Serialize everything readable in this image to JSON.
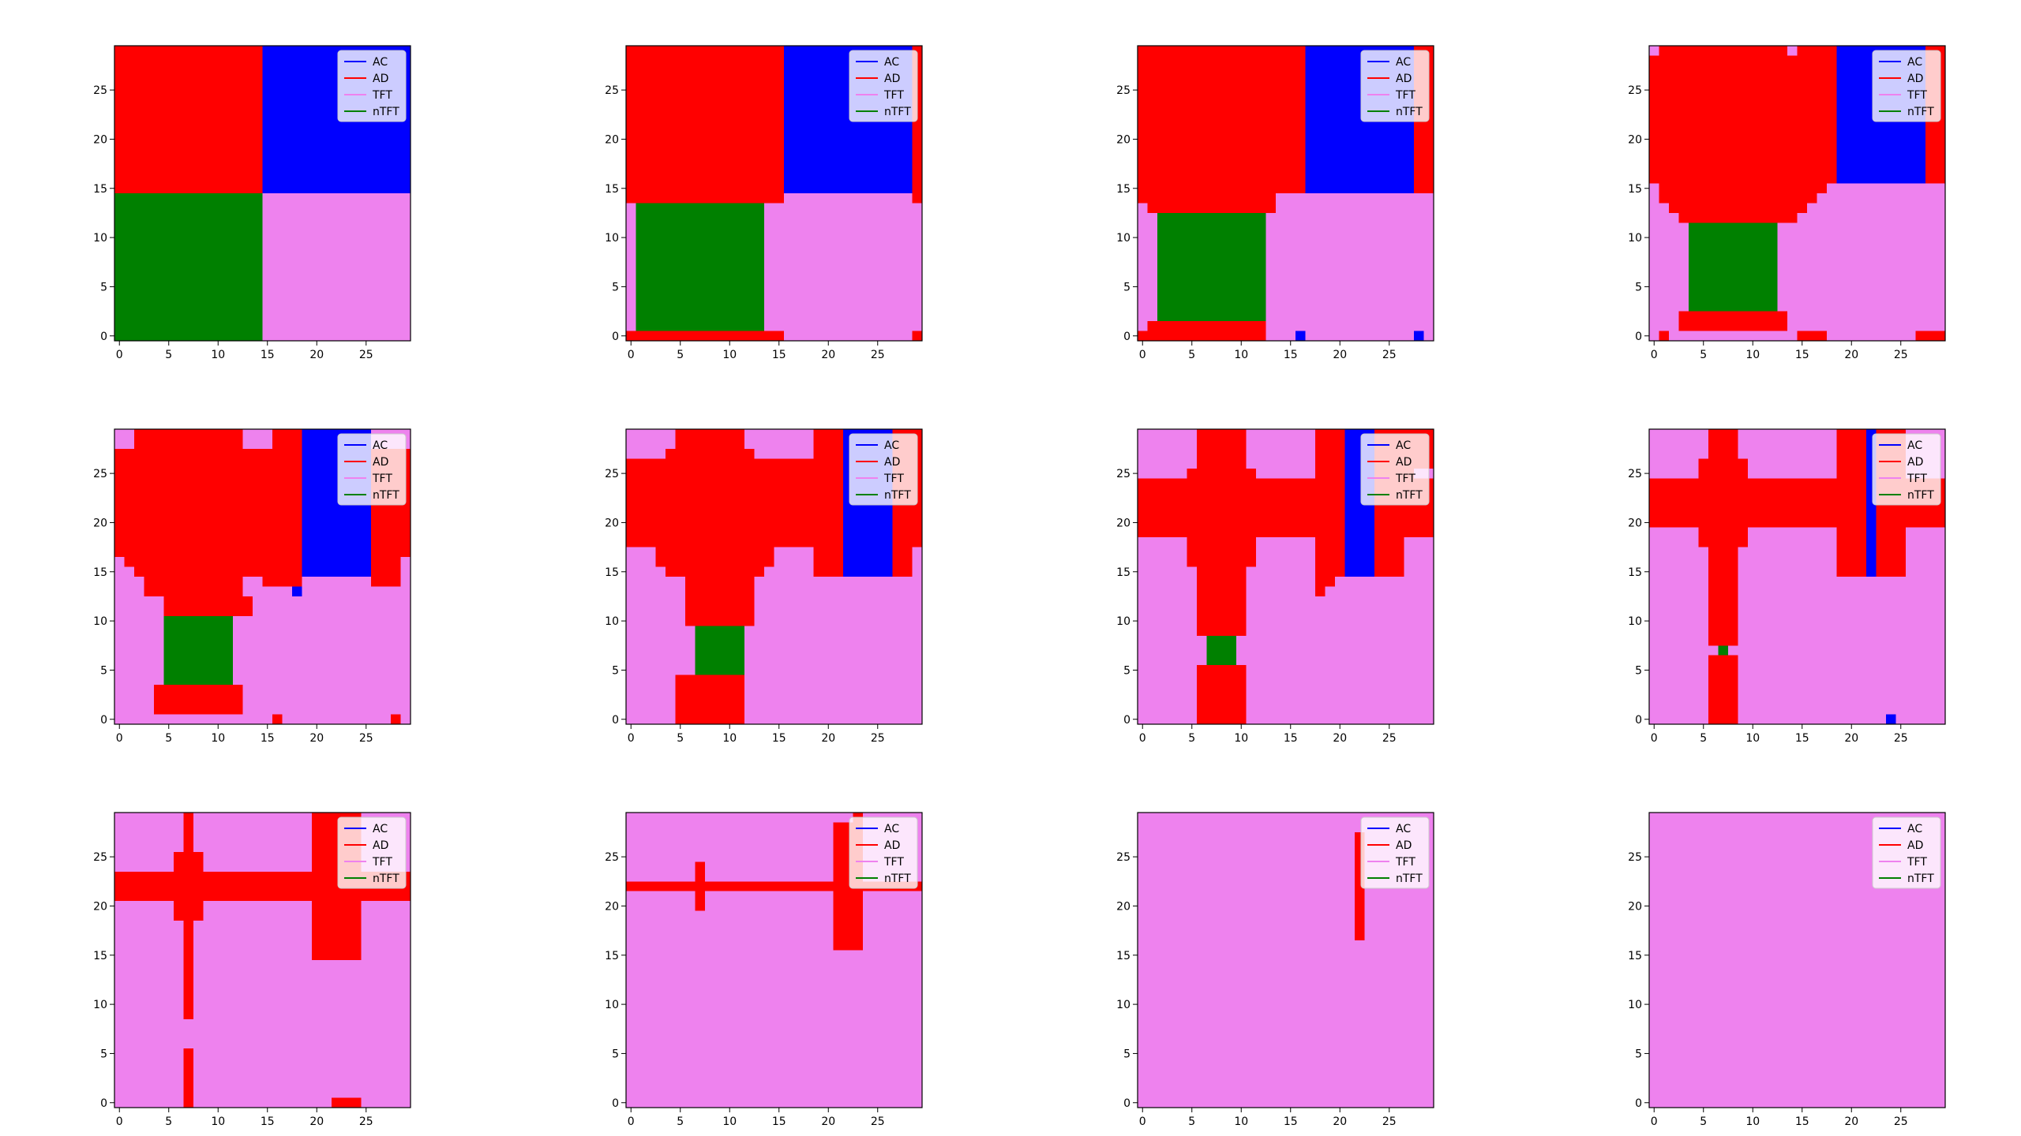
{
  "figure": {
    "layout": {
      "rows": 3,
      "cols": 4
    },
    "colors": {
      "AC": "#0000ff",
      "AD": "#ff0000",
      "TFT": "#ee82ee",
      "nTFT": "#008000"
    },
    "legend": [
      "AC",
      "AD",
      "TFT",
      "nTFT"
    ],
    "legend_placement": "upper right",
    "xlim": [
      -0.5,
      29.5
    ],
    "ylim": [
      -0.5,
      29.5
    ],
    "xticks": [
      0,
      5,
      10,
      15,
      20,
      25
    ],
    "yticks": [
      0,
      5,
      10,
      15,
      20,
      25
    ],
    "grid": false
  },
  "chart_data": [
    {
      "type": "heatmap",
      "grid_size": 30,
      "note": "categorical grid; rows listed from y=29 (top) to y=0 (bottom); C=AC, D=AD, T=TFT, N=nTFT",
      "rows": [
        "DDDDDDDDDDDDDDDCCCCCCCCCCCCCCC",
        "DDDDDDDDDDDDDDDCCCCCCCCCCCCCCC",
        "DDDDDDDDDDDDDDDCCCCCCCCCCCCCCC",
        "DDDDDDDDDDDDDDDCCCCCCCCCCCCCCC",
        "DDDDDDDDDDDDDDDCCCCCCCCCCCCCCC",
        "DDDDDDDDDDDDDDDCCCCCCCCCCCCCCC",
        "DDDDDDDDDDDDDDDCCCCCCCCCCCCCCC",
        "DDDDDDDDDDDDDDDCCCCCCCCCCCCCCC",
        "DDDDDDDDDDDDDDDCCCCCCCCCCCCCCC",
        "DDDDDDDDDDDDDDDCCCCCCCCCCCCCCC",
        "DDDDDDDDDDDDDDDCCCCCCCCCCCCCCC",
        "DDDDDDDDDDDDDDDCCCCCCCCCCCCCCC",
        "DDDDDDDDDDDDDDDCCCCCCCCCCCCCCC",
        "DDDDDDDDDDDDDDDCCCCCCCCCCCCCCC",
        "DDDDDDDDDDDDDDDCCCCCCCCCCCCCCC",
        "NNNNNNNNNNNNNNNTTTTTTTTTTTTTTT",
        "NNNNNNNNNNNNNNNTTTTTTTTTTTTTTT",
        "NNNNNNNNNNNNNNNTTTTTTTTTTTTTTT",
        "NNNNNNNNNNNNNNNTTTTTTTTTTTTTTT",
        "NNNNNNNNNNNNNNNTTTTTTTTTTTTTTT",
        "NNNNNNNNNNNNNNNTTTTTTTTTTTTTTT",
        "NNNNNNNNNNNNNNNTTTTTTTTTTTTTTT",
        "NNNNNNNNNNNNNNNTTTTTTTTTTTTTTT",
        "NNNNNNNNNNNNNNNTTTTTTTTTTTTTTT",
        "NNNNNNNNNNNNNNNTTTTTTTTTTTTTTT",
        "NNNNNNNNNNNNNNNTTTTTTTTTTTTTTT",
        "NNNNNNNNNNNNNNNTTTTTTTTTTTTTTT",
        "NNNNNNNNNNNNNNNTTTTTTTTTTTTTTT",
        "NNNNNNNNNNNNNNNTTTTTTTTTTTTTTT",
        "NNNNNNNNNNNNNNNTTTTTTTTTTTTTTT"
      ]
    },
    {
      "type": "heatmap",
      "grid_size": 30,
      "rows": [
        "DDDDDDDDDDDDDDDDCCCCCCCCCCCCCD",
        "DDDDDDDDDDDDDDDDCCCCCCCCCCCCCD",
        "DDDDDDDDDDDDDDDDCCCCCCCCCCCCCD",
        "DDDDDDDDDDDDDDDDCCCCCCCCCCCCCD",
        "DDDDDDDDDDDDDDDDCCCCCCCCCCCCCD",
        "DDDDDDDDDDDDDDDDCCCCCCCCCCCCCD",
        "DDDDDDDDDDDDDDDDCCCCCCCCCCCCCD",
        "DDDDDDDDDDDDDDDDCCCCCCCCCCCCCD",
        "DDDDDDDDDDDDDDDDCCCCCCCCCCCCCD",
        "DDDDDDDDDDDDDDDDCCCCCCCCCCCCCD",
        "DDDDDDDDDDDDDDDDCCCCCCCCCCCCCD",
        "DDDDDDDDDDDDDDDDCCCCCCCCCCCCCD",
        "DDDDDDDDDDDDDDDDCCCCCCCCCCCCCD",
        "DDDDDDDDDDDDDDDDCCCCCCCCCCCCCD",
        "DDDDDDDDDDDDDDDDCCCCCCCCCCCCCD",
        "DDDDDDDDDDDDDDDDTTTTTTTTTTTTTD",
        "TNNNNNNNNNNNNNTTTTTTTTTTTTTTTT",
        "TNNNNNNNNNNNNNTTTTTTTTTTTTTTTT",
        "TNNNNNNNNNNNNNTTTTTTTTTTTTTTTT",
        "TNNNNNNNNNNNNNTTTTTTTTTTTTTTTT",
        "TNNNNNNNNNNNNNTTTTTTTTTTTTTTTT",
        "TNNNNNNNNNNNNNTTTTTTTTTTTTTTTT",
        "TNNNNNNNNNNNNNTTTTTTTTTTTTTTTT",
        "TNNNNNNNNNNNNNTTTTTTTTTTTTTTTT",
        "TNNNNNNNNNNNNNTTTTTTTTTTTTTTTT",
        "TNNNNNNNNNNNNNTTTTTTTTTTTTTTTT",
        "TNNNNNNNNNNNNNTTTTTTTTTTTTTTTT",
        "TNNNNNNNNNNNNNTTTTTTTTTTTTTTTT",
        "TNNNNNNNNNNNNNTTTTTTTTTTTTTTTT",
        "DDDDDDDDDDDDDDDDTTTTTTTTTTTTTD"
      ]
    },
    {
      "type": "heatmap",
      "grid_size": 30,
      "rows": [
        "DDDDDDDDDDDDDDDDDCCCCCCCCCCCDD",
        "DDDDDDDDDDDDDDDDDCCCCCCCCCCCDD",
        "DDDDDDDDDDDDDDDDDCCCCCCCCCCCDD",
        "DDDDDDDDDDDDDDDDDCCCCCCCCCCCDD",
        "DDDDDDDDDDDDDDDDDCCCCCCCCCCCDD",
        "DDDDDDDDDDDDDDDDDCCCCCCCCCCCDD",
        "DDDDDDDDDDDDDDDDDCCCCCCCCCCCDD",
        "DDDDDDDDDDDDDDDDDCCCCCCCCCCCDD",
        "DDDDDDDDDDDDDDDDDCCCCCCCCCCCDD",
        "DDDDDDDDDDDDDDDDDCCCCCCCCCCCDD",
        "DDDDDDDDDDDDDDDDDCCCCCCCCCCCDD",
        "DDDDDDDDDDDDDDDDDCCCCCCCCCCCDD",
        "DDDDDDDDDDDDDDDDDCCCCCCCCCCCDD",
        "DDDDDDDDDDDDDDDDDCCCCCCCCCCCDD",
        "DDDDDDDDDDDDDDDDDCCCCCCCCCCCDD",
        "DDDDDDDDDDDDDDTTTTTTTTTTTTTTTT",
        "TDDDDDDDDDDDDDTTTTTTTTTTTTTTTT",
        "TTNNNNNNNNNNNTTTTTTTTTTTTTTTTT",
        "TTNNNNNNNNNNNTTTTTTTTTTTTTTTTT",
        "TTNNNNNNNNNNNTTTTTTTTTTTTTTTTT",
        "TTNNNNNNNNNNNTTTTTTTTTTTTTTTTT",
        "TTNNNNNNNNNNNTTTTTTTTTTTTTTTTT",
        "TTNNNNNNNNNNNTTTTTTTTTTTTTTTTT",
        "TTNNNNNNNNNNNTTTTTTTTTTTTTTTTT",
        "TTNNNNNNNNNNNTTTTTTTTTTTTTTTTT",
        "TTNNNNNNNNNNNTTTTTTTTTTTTTTTTT",
        "TTNNNNNNNNNNNTTTTTTTTTTTTTTTTT",
        "TTNNNNNNNNNNNTTTTTTTTTTTTTTTTT",
        "TDDDDDDDDDDDDTTTTTTTTTTTTTTTTT",
        "DDDDDDDDDDDDDTTTCTTTTTTTTTTTCT"
      ]
    },
    {
      "type": "heatmap",
      "grid_size": 30,
      "rows": [
        "TDDDDDDDDDDDDDTDDDDCCCCCCCCCDD",
        "DDDDDDDDDDDDDDDDDDDCCCCCCCCCDD",
        "DDDDDDDDDDDDDDDDDDDCCCCCCCCCDD",
        "DDDDDDDDDDDDDDDDDDDCCCCCCCCCDD",
        "DDDDDDDDDDDDDDDDDDDCCCCCCCCCDD",
        "DDDDDDDDDDDDDDDDDDDCCCCCCCCCDD",
        "DDDDDDDDDDDDDDDDDDDCCCCCCCCCDD",
        "DDDDDDDDDDDDDDDDDDDCCCCCCCCCDD",
        "DDDDDDDDDDDDDDDDDDDCCCCCCCCCDD",
        "DDDDDDDDDDDDDDDDDDDCCCCCCCCCDD",
        "DDDDDDDDDDDDDDDDDDDCCCCCCCCCDD",
        "DDDDDDDDDDDDDDDDDDDCCCCCCCCCDD",
        "DDDDDDDDDDDDDDDDDDDCCCCCCCCCDD",
        "DDDDDDDDDDDDDDDDDDDCCCCCCCCCDD",
        "TDDDDDDDDDDDDDDDDDTTTTTTTTTTTT",
        "TDDDDDDDDDDDDDDDDTTTTTTTTTTTTT",
        "TTDDDDDDDDDDDDDDTTTTTTTTTTTTTT",
        "TTTDDDDDDDDDDDDTTTTTTTTTTTTTTT",
        "TTTTNNNNNNNNNTTTTTTTTTTTTTTTTT",
        "TTTTNNNNNNNNNTTTTTTTTTTTTTTTTT",
        "TTTTNNNNNNNNNTTTTTTTTTTTTTTTTT",
        "TTTTNNNNNNNNNTTTTTTTTTTTTTTTTT",
        "TTTTNNNNNNNNNTTTTTTTTTTTTTTTTT",
        "TTTTNNNNNNNNNTTTTTTTTTTTTTTTTT",
        "TTTTNNNNNNNNNTTTTTTTTTTTTTTTTT",
        "TTTTNNNNNNNNNTTTTTTTTTTTTTTTTT",
        "TTTTNNNNNNNNNTTTTTTTTTTTTTTTTT",
        "TTTDDDDDDDDDDDTTTTTTTTTTTTTTTT",
        "TTTDDDDDDDDDDDTTTTTTTTTTTTTTTT",
        "TDTTTTTTTTTTTTTDDDTTTTTTTTTDDD"
      ]
    },
    {
      "type": "heatmap",
      "grid_size": 30,
      "rows": [
        "TTDDDDDDDDDDDTTTDDDCCCCCCCTTTT",
        "TTDDDDDDDDDDDTTTDDDCCCCCCCTTTT",
        "DDDDDDDDDDDDDDDDDDDCCCCCCCDDDD",
        "DDDDDDDDDDDDDDDDDDDCCCCCCCDDDD",
        "DDDDDDDDDDDDDDDDDDDCCCCCCCDDDD",
        "DDDDDDDDDDDDDDDDDDDCCCCCCCDDDD",
        "DDDDDDDDDDDDDDDDDDDCCCCCCCDDDD",
        "DDDDDDDDDDDDDDDDDDDCCCCCCCDDDD",
        "DDDDDDDDDDDDDDDDDDDCCCCCCCDDDD",
        "DDDDDDDDDDDDDDDDDDDCCCCCCCDDDD",
        "DDDDDDDDDDDDDDDDDDDCCCCCCCDDDD",
        "DDDDDDDDDDDDDDDDDDDCCCCCCCDDDD",
        "DDDDDDDDDDDDDDDDDDDCCCCCCCDDDD",
        "TDDDDDDDDDDDDDDDDDDCCCCCCCDDDT",
        "TTDDDDDDDDDDDDDDDDDCCCCCCCDDDT",
        "TTTDDDDDDDDDDTTDDDDTTTTTTTDDDT",
        "TTTDDDDDDDDDDTTTTTCTTTTTTTTTTT",
        "TTTTTDDDDDDDDDTTTTTTTTTTTTTTTT",
        "TTTTTDDDDDDDDDTTTTTTTTTTTTTTTT",
        "TTTTTNNNNNNNTTTTTTTTTTTTTTTTTT",
        "TTTTTNNNNNNNTTTTTTTTTTTTTTTTTT",
        "TTTTTNNNNNNNTTTTTTTTTTTTTTTTTT",
        "TTTTTNNNNNNNTTTTTTTTTTTTTTTTTT",
        "TTTTTNNNNNNNTTTTTTTTTTTTTTTTTT",
        "TTTTTNNNNNNNTTTTTTTTTTTTTTTTTT",
        "TTTTTNNNNNNNTTTTTTTTTTTTTTTTTT",
        "TTTTDDDDDDDDDTTTTTTTTTTTTTTTTT",
        "TTTTDDDDDDDDDTTTTTTTTTTTTTTTTT",
        "TTTTDDDDDDDDDTTTTTTTTTTTTTTTTT",
        "TTTTTTTTTTTTTTTTDTTTTTTTTTTTDT"
      ]
    },
    {
      "type": "heatmap",
      "grid_size": 30,
      "rows": [
        "TTTTTDDDDDDDTTTTTTTDDDCCCCCDDD",
        "TTTTTDDDDDDDTTTTTTTDDDCCCCCDDD",
        "TTTTDDDDDDDDDTTTTTTDDDCCCCCDDD",
        "DDDDDDDDDDDDDDDDDDDDDDCCCCCDDD",
        "DDDDDDDDDDDDDDDDDDDDDDCCCCCDDD",
        "DDDDDDDDDDDDDDDDDDDDDDCCCCCDDD",
        "DDDDDDDDDDDDDDDDDDDDDDCCCCCDDD",
        "DDDDDDDDDDDDDDDDDDDDDDCCCCCDDD",
        "DDDDDDDDDDDDDDDDDDDDDDCCCCCDDD",
        "DDDDDDDDDDDDDDDDDDDDDDCCCCCDDD",
        "DDDDDDDDDDDDDDDDDDDDDDCCCCCDDD",
        "DDDDDDDDDDDDDDDDDDDDDDCCCCCDDD",
        "TTTDDDDDDDDDDDDTTTTDDDCCCCCDDT",
        "TTTDDDDDDDDDDDDTTTTDDDCCCCCDDT",
        "TTTTDDDDDDDDDDTTTTTDDDCCCCCDDT",
        "TTTTTTDDDDDDDTTTTTTTTTTTTTTTTT",
        "TTTTTTDDDDDDDTTTTTTTTTTTTTTTTT",
        "TTTTTTDDDDDDDTTTTTTTTTTTTTTTTT",
        "TTTTTTDDDDDDDTTTTTTTTTTTTTTTTT",
        "TTTTTTDDDDDDDTTTTTTTTTTTTTTTTT",
        "TTTTTTTNNNNNTTTTTTTTTTTTTTTTTT",
        "TTTTTTTNNNNNTTTTTTTTTTTTTTTTTT",
        "TTTTTTTNNNNNTTTTTTTTTTTTTTTTTT",
        "TTTTTTTNNNNNTTTTTTTTTTTTTTTTTT",
        "TTTTTTTNNNNNTTTTTTTTTTTTTTTTTT",
        "TTTTTDDDDDDDTTTTTTTTTTTTTTTTTT",
        "TTTTTDDDDDDDTTTTTTTTTTTTTTTTTT",
        "TTTTTDDDDDDDTTTTTTTTTTTTTTTTTT",
        "TTTTTDDDDDDDTTTTTTTTTTTTTTTTTT",
        "TTTTTDDDDDDDTTTTTTTTTTTTTTTTTT"
      ]
    },
    {
      "type": "heatmap",
      "grid_size": 30,
      "rows": [
        "TTTTTTDDDDDTTTTTTTDDDCCCDDDDDD",
        "TTTTTTDDDDDTTTTTTTDDDCCCDDDDDD",
        "TTTTTTDDDDDTTTTTTTDDDCCCDDDDDD",
        "TTTTTTDDDDDTTTTTTTDDDCCCDDDDDD",
        "TTTTTDDDDDDDTTTTTTDDDCCCDDDDTT",
        "DDDDDDDDDDDDDDDDDDDDDCCCDDDDDD",
        "DDDDDDDDDDDDDDDDDDDDDCCCDDDDDD",
        "DDDDDDDDDDDDDDDDDDDDDCCCDDDDDD",
        "DDDDDDDDDDDDDDDDDDDDDCCCDDDDDD",
        "DDDDDDDDDDDDDDDDDDDDDCCCDDDDDD",
        "DDDDDDDDDDDDDDDDDDDDDCCCDDDDDD",
        "TTTTTDDDDDDDTTTTTTDDDCCCDDDTTT",
        "TTTTTDDDDDDDTTTTTTDDDCCCDDDTTT",
        "TTTTTDDDDDDDTTTTTTDDDCCCDDDTTT",
        "TTTTTTDDDDDTTTTTTTDDDCCCDDDTTT",
        "TTTTTTDDDDDTTTTTTTDDTTTTTTTTTT",
        "TTTTTTDDDDDTTTTTTTDTTTTTTTTTTT",
        "TTTTTTDDDDDTTTTTTTTTTTTTTTTTTT",
        "TTTTTTDDDDDTTTTTTTTTTTTTTTTTTT",
        "TTTTTTDDDDDTTTTTTTTTTTTTTTTTTT",
        "TTTTTTDDDDDTTTTTTTTTTTTTTTTTTT",
        "TTTTTTTNNNTTTTTTTTTTTTTTTTTTTT",
        "TTTTTTTNNNTTTTTTTTTTTTTTTTTTTT",
        "TTTTTTTNNNTTTTTTTTTTTTTTTTTTTT",
        "TTTTTTDDDDDTTTTTTTTTTTTTTTTTTT",
        "TTTTTTDDDDDTTTTTTTTTTTTTTTTTTT",
        "TTTTTTDDDDDTTTTTTTTTTTTTTTTTTT",
        "TTTTTTDDDDDTTTTTTTTTTTTTTTTTTT",
        "TTTTTTDDDDDTTTTTTTTTTTTTTTTTTT",
        "TTTTTTDDDDDTTTTTTTTTTTTTTTTTTT"
      ]
    },
    {
      "type": "heatmap",
      "grid_size": 30,
      "rows": [
        "TTTTTTDDDTTTTTTTTTTDDDCDDDTTTT",
        "TTTTTTDDDTTTTTTTTTTDDDCDDDTTTT",
        "TTTTTTDDDTTTTTTTTTTDDDCDDDTTTT",
        "TTTTTDDDDDTTTTTTTTTDDDCDDDTTTT",
        "TTTTTDDDDDTTTTTTTTTDDDCDDDTTTT",
        "DDDDDDDDDDDDDDDDDDDDDDCDDDDDDD",
        "DDDDDDDDDDDDDDDDDDDDDDCDDDDDDD",
        "DDDDDDDDDDDDDDDDDDDDDDCDDDDDDD",
        "DDDDDDDDDDDDDDDDDDDDDDCDDDDDDD",
        "DDDDDDDDDDDDDDDDDDDDDDCDDDDDDD",
        "TTTTTDDDDDTTTTTTTTTDDDCDDDTTTT",
        "TTTTTDDDDDTTTTTTTTTDDDCDDDTTTT",
        "TTTTTTDDDTTTTTTTTTTDDDCDDDTTTT",
        "TTTTTTDDDTTTTTTTTTTDDDCDDDTTTT",
        "TTTTTTDDDTTTTTTTTTTDDDCDDDTTTT",
        "TTTTTTDDDTTTTTTTTTTTTTTTTTTTTT",
        "TTTTTTDDDTTTTTTTTTTTTTTTTTTTTT",
        "TTTTTTDDDTTTTTTTTTTTTTTTTTTTTT",
        "TTTTTTDDDTTTTTTTTTTTTTTTTTTTTT",
        "TTTTTTDDDTTTTTTTTTTTTTTTTTTTTT",
        "TTTTTTDDDTTTTTTTTTTTTTTTTTTTTT",
        "TTTTTTDDDTTTTTTTTTTTTTTTTTTTTT",
        "TTTTTTTNTTTTTTTTTTTTTTTTTTTTTT",
        "TTTTTTDDDTTTTTTTTTTTTTTTTTTTTT",
        "TTTTTTDDDTTTTTTTTTTTTTTTTTTTTT",
        "TTTTTTDDDTTTTTTTTTTTTTTTTTTTTT",
        "TTTTTTDDDTTTTTTTTTTTTTTTTTTTTT",
        "TTTTTTDDDTTTTTTTTTTTTTTTTTTTTT",
        "TTTTTTDDDTTTTTTTTTTTTTTTTTTTTT",
        "TTTTTTDDDTTTTTTTTTTTTTTTCTTTTT"
      ]
    },
    {
      "type": "heatmap",
      "grid_size": 30,
      "rows": [
        "TTTTTTTDTTTTTTTTTTTTDDDDDTTTTT",
        "TTTTTTTDTTTTTTTTTTTTDDDDDTTTTT",
        "TTTTTTTDTTTTTTTTTTTTDDDDDTTTTT",
        "TTTTTTTDTTTTTTTTTTTTDDDDDTTTTT",
        "TTTTTTDDDTTTTTTTTTTTDDDDDTTTTT",
        "TTTTTTDDDTTTTTTTTTTTDDDDDTTTTT",
        "DDDDDDDDDDDDDDDDDDDDDDDDDDDDDD",
        "DDDDDDDDDDDDDDDDDDDDDDDDDDDDDD",
        "DDDDDDDDDDDDDDDDDDDDDDDDDDDDDD",
        "TTTTTTDDDTTTTTTTTTTTDDDDDTTTTT",
        "TTTTTTDDDTTTTTTTTTTTDDDDDTTTTT",
        "TTTTTTTDTTTTTTTTTTTTDDDDDTTTTT",
        "TTTTTTTDTTTTTTTTTTTTDDDDDTTTTT",
        "TTTTTTTDTTTTTTTTTTTTDDDDDTTTTT",
        "TTTTTTTDTTTTTTTTTTTTDDDDDTTTTT",
        "TTTTTTTDTTTTTTTTTTTTTTTTTTTTTT",
        "TTTTTTTDTTTTTTTTTTTTTTTTTTTTTT",
        "TTTTTTTDTTTTTTTTTTTTTTTTTTTTTT",
        "TTTTTTTDTTTTTTTTTTTTTTTTTTTTTT",
        "TTTTTTTDTTTTTTTTTTTTTTTTTTTTTT",
        "TTTTTTTDTTTTTTTTTTTTTTTTTTTTTT",
        "TTTTTTTTTTTTTTTTTTTTTTTTTTTTTT",
        "TTTTTTTTTTTTTTTTTTTTTTTTTTTTTT",
        "TTTTTTTTTTTTTTTTTTTTTTTTTTTTTT",
        "TTTTTTTDTTTTTTTTTTTTTTTTTTTTTT",
        "TTTTTTTDTTTTTTTTTTTTTTTTTTTTTT",
        "TTTTTTTDTTTTTTTTTTTTTTTTTTTTTT",
        "TTTTTTTDTTTTTTTTTTTTTTTTTTTTTT",
        "TTTTTTTDTTTTTTTTTTTTTTTTTTTTTT",
        "TTTTTTTDTTTTTTTTTTTTTTDDDTTTTT"
      ]
    },
    {
      "type": "heatmap",
      "grid_size": 30,
      "rows": [
        "TTTTTTTTTTTTTTTTTTTTTTTDTTTTTT",
        "TTTTTTTTTTTTTTTTTTTTTDDDTTTTTT",
        "TTTTTTTTTTTTTTTTTTTTTDDDTTTTTT",
        "TTTTTTTTTTTTTTTTTTTTTDDDTTTTTT",
        "TTTTTTTTTTTTTTTTTTTTTDDDTTTTTT",
        "TTTTTTTDTTTTTTTTTTTTTDDDTTTTTT",
        "TTTTTTTDTTTTTTTTTTTTTDDDTTTTTT",
        "DDDDDDDDDDDDDDDDDDDDDDDDDDDDDD",
        "TTTTTTTDTTTTTTTTTTTTTDDDTTTTTT",
        "TTTTTTTDTTTTTTTTTTTTTDDDTTTTTT",
        "TTTTTTTTTTTTTTTTTTTTTDDDTTTTTT",
        "TTTTTTTTTTTTTTTTTTTTTDDDTTTTTT",
        "TTTTTTTTTTTTTTTTTTTTTDDDTTTTTT",
        "TTTTTTTTTTTTTTTTTTTTTDDDTTTTTT",
        "TTTTTTTTTTTTTTTTTTTTTTTTTTTTTT",
        "TTTTTTTTTTTTTTTTTTTTTTTTTTTTTT",
        "TTTTTTTTTTTTTTTTTTTTTTTTTTTTTT",
        "TTTTTTTTTTTTTTTTTTTTTTTTTTTTTT",
        "TTTTTTTTTTTTTTTTTTTTTTTTTTTTTT",
        "TTTTTTTTTTTTTTTTTTTTTTTTTTTTTT",
        "TTTTTTTTTTTTTTTTTTTTTTTTTTTTTT",
        "TTTTTTTTTTTTTTTTTTTTTTTTTTTTTT",
        "TTTTTTTTTTTTTTTTTTTTTTTTTTTTTT",
        "TTTTTTTTTTTTTTTTTTTTTTTTTTTTTT",
        "TTTTTTTTTTTTTTTTTTTTTTTTTTTTTT",
        "TTTTTTTTTTTTTTTTTTTTTTTTTTTTTT",
        "TTTTTTTTTTTTTTTTTTTTTTTTTTTTTT",
        "TTTTTTTTTTTTTTTTTTTTTTTTTTTTTT",
        "TTTTTTTTTTTTTTTTTTTTTTTTTTTTTT",
        "TTTTTTTTTTTTTTTTTTTTTTTTTTTTTT"
      ]
    },
    {
      "type": "heatmap",
      "grid_size": 30,
      "rows": [
        "TTTTTTTTTTTTTTTTTTTTTTTTTTTTTT",
        "TTTTTTTTTTTTTTTTTTTTTTTTTTTTTT",
        "TTTTTTTTTTTTTTTTTTTTTTDTTTTTTT",
        "TTTTTTTTTTTTTTTTTTTTTTDTTTTTTT",
        "TTTTTTTTTTTTTTTTTTTTTTDTTTTTTT",
        "TTTTTTTTTTTTTTTTTTTTTTDTTTTTTT",
        "TTTTTTTTTTTTTTTTTTTTTTDTTTTTTT",
        "TTTTTTTTTTTTTTTTTTTTTTDTTTTTTT",
        "TTTTTTTTTTTTTTTTTTTTTTDTTTTTTT",
        "TTTTTTTTTTTTTTTTTTTTTTDTTTTTTT",
        "TTTTTTTTTTTTTTTTTTTTTTDTTTTTTT",
        "TTTTTTTTTTTTTTTTTTTTTTDTTTTTTT",
        "TTTTTTTTTTTTTTTTTTTTTTDTTTTTTT",
        "TTTTTTTTTTTTTTTTTTTTTTTTTTTTTT",
        "TTTTTTTTTTTTTTTTTTTTTTTTTTTTTT",
        "TTTTTTTTTTTTTTTTTTTTTTTTTTTTTT",
        "TTTTTTTTTTTTTTTTTTTTTTTTTTTTTT",
        "TTTTTTTTTTTTTTTTTTTTTTTTTTTTTT",
        "TTTTTTTTTTTTTTTTTTTTTTTTTTTTTT",
        "TTTTTTTTTTTTTTTTTTTTTTTTTTTTTT",
        "TTTTTTTTTTTTTTTTTTTTTTTTTTTTTT",
        "TTTTTTTTTTTTTTTTTTTTTTTTTTTTTT",
        "TTTTTTTTTTTTTTTTTTTTTTTTTTTTTT",
        "TTTTTTTTTTTTTTTTTTTTTTTTTTTTTT",
        "TTTTTTTTTTTTTTTTTTTTTTTTTTTTTT",
        "TTTTTTTTTTTTTTTTTTTTTTTTTTTTTT",
        "TTTTTTTTTTTTTTTTTTTTTTTTTTTTTT",
        "TTTTTTTTTTTTTTTTTTTTTTTTTTTTTT",
        "TTTTTTTTTTTTTTTTTTTTTTTTTTTTTT",
        "TTTTTTTTTTTTTTTTTTTTTTTTTTTTTT"
      ]
    },
    {
      "type": "heatmap",
      "grid_size": 30,
      "rows": [
        "TTTTTTTTTTTTTTTTTTTTTTTTTTTTTT",
        "TTTTTTTTTTTTTTTTTTTTTTTTTTTTTT",
        "TTTTTTTTTTTTTTTTTTTTTTTTTTTTTT",
        "TTTTTTTTTTTTTTTTTTTTTTTTTTTTTT",
        "TTTTTTTTTTTTTTTTTTTTTTTTTTTTTT",
        "TTTTTTTTTTTTTTTTTTTTTTTTTTTTTT",
        "TTTTTTTTTTTTTTTTTTTTTTTTTTTTTT",
        "TTTTTTTTTTTTTTTTTTTTTTTTTTTTTT",
        "TTTTTTTTTTTTTTTTTTTTTTTTTTTTTT",
        "TTTTTTTTTTTTTTTTTTTTTTTTTTTTTT",
        "TTTTTTTTTTTTTTTTTTTTTTTTTTTTTT",
        "TTTTTTTTTTTTTTTTTTTTTTTTTTTTTT",
        "TTTTTTTTTTTTTTTTTTTTTTTTTTTTTT",
        "TTTTTTTTTTTTTTTTTTTTTTTTTTTTTT",
        "TTTTTTTTTTTTTTTTTTTTTTTTTTTTTT",
        "TTTTTTTTTTTTTTTTTTTTTTTTTTTTTT",
        "TTTTTTTTTTTTTTTTTTTTTTTTTTTTTT",
        "TTTTTTTTTTTTTTTTTTTTTTTTTTTTTT",
        "TTTTTTTTTTTTTTTTTTTTTTTTTTTTTT",
        "TTTTTTTTTTTTTTTTTTTTTTTTTTTTTT",
        "TTTTTTTTTTTTTTTTTTTTTTTTTTTTTT",
        "TTTTTTTTTTTTTTTTTTTTTTTTTTTTTT",
        "TTTTTTTTTTTTTTTTTTTTTTTTTTTTTT",
        "TTTTTTTTTTTTTTTTTTTTTTTTTTTTTT",
        "TTTTTTTTTTTTTTTTTTTTTTTTTTTTTT",
        "TTTTTTTTTTTTTTTTTTTTTTTTTTTTTT",
        "TTTTTTTTTTTTTTTTTTTTTTTTTTTTTT",
        "TTTTTTTTTTTTTTTTTTTTTTTTTTTTTT",
        "TTTTTTTTTTTTTTTTTTTTTTTTTTTTTT",
        "TTTTTTTTTTTTTTTTTTTTTTTTTTTTTT"
      ]
    }
  ]
}
